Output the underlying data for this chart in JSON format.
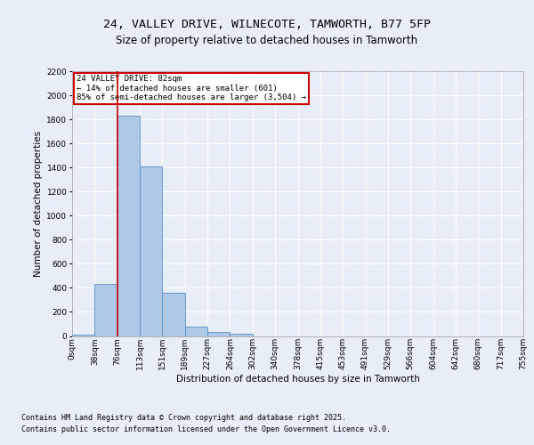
{
  "title_line1": "24, VALLEY DRIVE, WILNECOTE, TAMWORTH, B77 5FP",
  "title_line2": "Size of property relative to detached houses in Tamworth",
  "xlabel": "Distribution of detached houses by size in Tamworth",
  "ylabel": "Number of detached properties",
  "footer_line1": "Contains HM Land Registry data © Crown copyright and database right 2025.",
  "footer_line2": "Contains public sector information licensed under the Open Government Licence v3.0.",
  "annotation_line1": "24 VALLEY DRIVE: 82sqm",
  "annotation_line2": "← 14% of detached houses are smaller (601)",
  "annotation_line3": "85% of semi-detached houses are larger (3,504) →",
  "bar_values": [
    10,
    430,
    1830,
    1410,
    360,
    75,
    30,
    20,
    0,
    0,
    0,
    0,
    0,
    0,
    0,
    0,
    0,
    0,
    0,
    0
  ],
  "bar_labels": [
    "0sqm",
    "38sqm",
    "76sqm",
    "113sqm",
    "151sqm",
    "189sqm",
    "227sqm",
    "264sqm",
    "302sqm",
    "340sqm",
    "378sqm",
    "415sqm",
    "453sqm",
    "491sqm",
    "529sqm",
    "566sqm",
    "604sqm",
    "642sqm",
    "680sqm",
    "717sqm",
    "755sqm"
  ],
  "bar_color": "#aec8e8",
  "bar_edge_color": "#5a8fc0",
  "vline_color": "#cc0000",
  "annotation_box_color": "#cc0000",
  "ylim": [
    0,
    2200
  ],
  "yticks": [
    0,
    200,
    400,
    600,
    800,
    1000,
    1200,
    1400,
    1600,
    1800,
    2000,
    2200
  ],
  "background_color": "#e8eef8",
  "plot_bg_color": "#e8eef8",
  "grid_color": "#ffffff",
  "title_fontsize": 9.5,
  "subtitle_fontsize": 8.5,
  "axis_label_fontsize": 7.5,
  "tick_fontsize": 6.5,
  "annotation_fontsize": 6.5,
  "footer_fontsize": 6.0
}
